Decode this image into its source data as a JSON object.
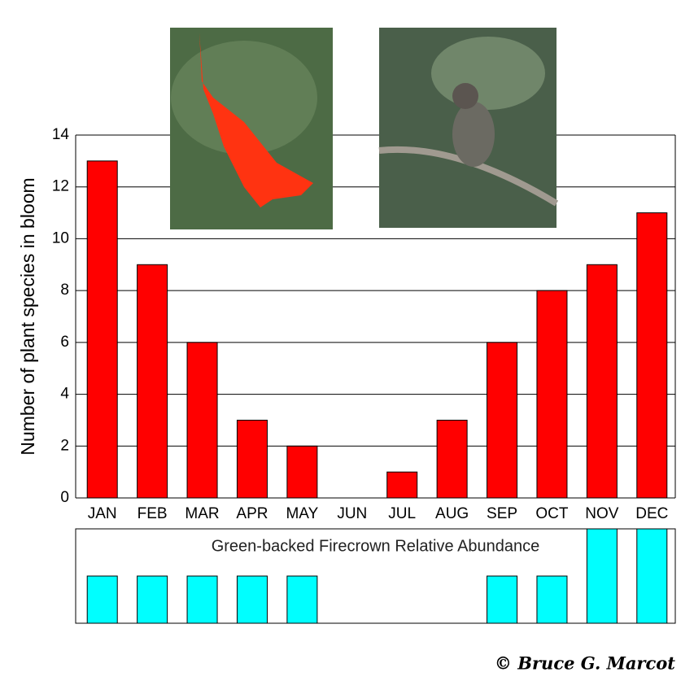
{
  "chart_data": [
    {
      "type": "bar",
      "y_label": "Number of plant species in bloom",
      "categories": [
        "JAN",
        "FEB",
        "MAR",
        "APR",
        "MAY",
        "JUN",
        "JUL",
        "AUG",
        "SEP",
        "OCT",
        "NOV",
        "DEC"
      ],
      "values": [
        13,
        9,
        6,
        3,
        2,
        0,
        1,
        3,
        6,
        8,
        9,
        11
      ],
      "color": "#ff0000",
      "ylim": [
        0,
        14
      ],
      "yticks": [
        0,
        2,
        4,
        6,
        8,
        10,
        12,
        14
      ],
      "grid": true
    },
    {
      "type": "bar",
      "title": "Green-backed Firecrown Relative Abundance",
      "values": [
        1,
        1,
        1,
        1,
        1,
        0,
        0,
        0,
        1,
        1,
        2,
        2
      ],
      "color": "#00ffff",
      "ylim": [
        0,
        2
      ],
      "grid": false
    }
  ],
  "credit": "© Bruce G. Marcot"
}
